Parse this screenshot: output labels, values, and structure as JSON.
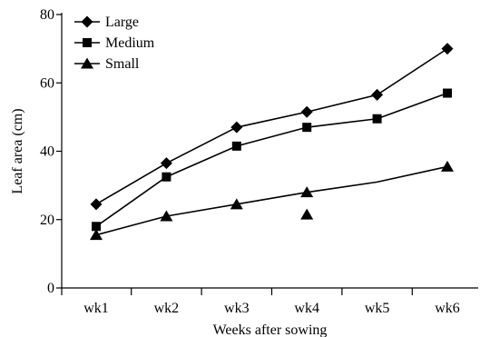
{
  "chart_data": {
    "type": "line",
    "title": "",
    "xlabel": "Weeks after sowing",
    "ylabel": "Leaf area (cm)",
    "categories": [
      "wk1",
      "wk2",
      "wk3",
      "wk4",
      "wk5",
      "wk6"
    ],
    "ylim": [
      0,
      80
    ],
    "yticks": [
      "0",
      "20",
      "40",
      "60",
      "80"
    ],
    "grid": false,
    "legend_position": "top-left",
    "series": [
      {
        "name": "Large",
        "marker": "diamond",
        "color": "#000000",
        "values": [
          24.5,
          36.5,
          47,
          51.5,
          56.5,
          70
        ]
      },
      {
        "name": "Medium",
        "marker": "square",
        "color": "#000000",
        "values": [
          18,
          32.5,
          41.5,
          47,
          49.5,
          57
        ]
      },
      {
        "name": "Small",
        "marker": "triangle",
        "color": "#000000",
        "values": [
          15.5,
          21,
          24.5,
          28,
          31,
          35.5
        ],
        "line_only_at": [
          4
        ],
        "extra_points": [
          {
            "x": "wk4",
            "y": 21.5
          }
        ]
      }
    ]
  }
}
